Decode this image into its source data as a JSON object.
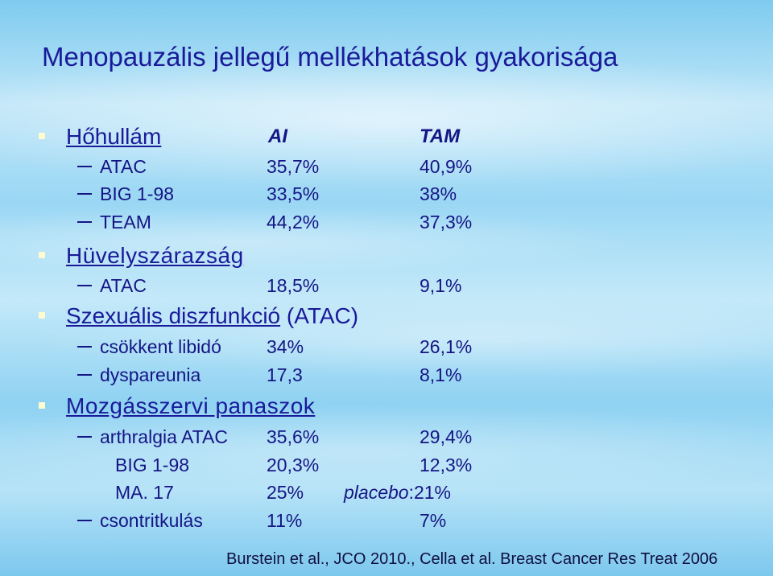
{
  "title": "Menopauzális jellegű mellékhatások gyakorisága",
  "header": {
    "label": "Hőhullám",
    "col_ai": "AI",
    "col_tam": "TAM"
  },
  "hot_flush": [
    {
      "study": "ATAC",
      "ai": "35,7%",
      "tam": "40,9%"
    },
    {
      "study": "BIG 1-98",
      "ai": "33,5%",
      "tam": "38%"
    },
    {
      "study": "TEAM",
      "ai": "44,2%",
      "tam": "37,3%"
    }
  ],
  "vaginal_dryness": {
    "label": "Hüvelyszárazság",
    "rows": [
      {
        "study": "ATAC",
        "ai": "18,5%",
        "tam": "9,1%"
      }
    ]
  },
  "sexual": {
    "label": "Szexuális diszfunkció",
    "suffix": "(ATAC)",
    "rows": [
      {
        "study": "csökkent libidó",
        "ai": "34%",
        "tam": "26,1%"
      },
      {
        "study": "dyspareunia",
        "ai": "17,3",
        "tam": "8,1%"
      }
    ]
  },
  "musculo": {
    "label": "Mozgásszervi panaszok",
    "arthralgia": {
      "study": "arthralgia ATAC",
      "ai": "35,6%",
      "tam": "29,4%"
    },
    "big": {
      "study": "BIG 1-98",
      "ai": "20,3%",
      "tam": "12,3%"
    },
    "ma17": {
      "study": "MA. 17",
      "ai": "25%",
      "tam_label": "placebo",
      "tam": ":21%"
    },
    "fracture": {
      "study": "csontritkulás",
      "ai": "11%",
      "tam": "7%"
    }
  },
  "footnote": "Burstein et al., JCO 2010., Cella et al. Breast Cancer Res Treat 2006"
}
